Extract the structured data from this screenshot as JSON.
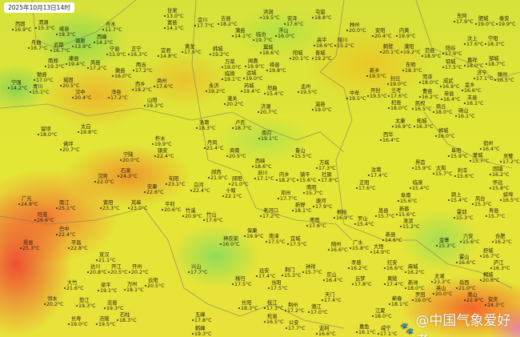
{
  "timestamp": "2025年10月13日14时",
  "watermark": "@中国气象爱好者",
  "watermark_icon": "weibo-paw-icon",
  "colors": {
    "cool": "#8ed85a",
    "mild": "#e2e436",
    "warm": "#f0a828",
    "hot": "#f0583a"
  },
  "stations": [
    {
      "name": "西固",
      "temp": "16.9°C"
    },
    {
      "name": "渭源",
      "temp": "15.3°C"
    },
    {
      "name": "岷县",
      "temp": "18.3°C"
    },
    {
      "name": "镇原",
      "temp": "13.9°C"
    },
    {
      "name": "西峰",
      "temp": "14.2°C"
    },
    {
      "name": "合水",
      "temp": "11.7°C"
    },
    {
      "name": "宁县",
      "temp": "11.0°C"
    },
    {
      "name": "正宁",
      "temp": "16.3°C"
    },
    {
      "name": "甘泉",
      "temp": "13.0°C"
    },
    {
      "name": "富县",
      "temp": "14.1°C"
    },
    {
      "name": "宜君",
      "temp": "14.8°C"
    },
    {
      "name": "舟曲",
      "temp": "16.7°C"
    },
    {
      "name": "武都",
      "temp": "16.7°C"
    },
    {
      "name": "康县",
      "temp": "19.4°C"
    },
    {
      "name": "凤县",
      "temp": "17.2°C"
    },
    {
      "name": "徽县",
      "temp": "16.0°C"
    },
    {
      "name": "两当",
      "temp": "17.2°C"
    },
    {
      "name": "勉县",
      "temp": "17.0°C"
    },
    {
      "name": "宁强",
      "temp": "14.2°C"
    },
    {
      "name": "青川",
      "temp": "15.1°C"
    },
    {
      "name": "城固",
      "temp": "20.5°C"
    },
    {
      "name": "南郑",
      "temp": "19.3°C"
    },
    {
      "name": "汉中",
      "temp": "20.4°C"
    },
    {
      "name": "洋县",
      "temp": "17.2°C"
    },
    {
      "name": "西乡",
      "temp": "18.2°C"
    },
    {
      "name": "商州",
      "temp": "17.6°C"
    },
    {
      "name": "山阳",
      "temp": "19.3°C"
    },
    {
      "name": "宜川",
      "temp": "17.7°C"
    },
    {
      "name": "吉县",
      "temp": "18.2°C"
    },
    {
      "name": "蒲县",
      "temp": "14.1°C"
    },
    {
      "name": "黄龙",
      "temp": "17.6°C"
    },
    {
      "name": "韩城",
      "temp": "19.2°C"
    },
    {
      "name": "万荣",
      "temp": "19.0°C"
    },
    {
      "name": "临猗",
      "temp": "19.1°C"
    },
    {
      "name": "运城",
      "temp": "19.0°C"
    },
    {
      "name": "永济",
      "temp": "19.2°C"
    },
    {
      "name": "潼关",
      "temp": "20.2°C"
    },
    {
      "name": "芮城",
      "temp": "19.4°C"
    },
    {
      "name": "垣曲",
      "temp": "15.4°C"
    },
    {
      "name": "济源",
      "temp": "20.7°C"
    },
    {
      "name": "洪洞",
      "temp": "19.5°C"
    },
    {
      "name": "安泽",
      "temp": "17.6°C"
    },
    {
      "name": "临汾",
      "temp": "19.7°C"
    },
    {
      "name": "浮山",
      "temp": "16.0°C"
    },
    {
      "name": "翼城",
      "temp": "18.6°C"
    },
    {
      "name": "闻喜",
      "temp": "19.9°C"
    },
    {
      "name": "绛县",
      "temp": "19.8°C"
    },
    {
      "name": "阳城",
      "temp": "20.1°C"
    },
    {
      "name": "高平",
      "temp": "18.6°C"
    },
    {
      "name": "陵川",
      "temp": "15.2°C"
    },
    {
      "name": "晋城",
      "temp": "19.2°C"
    },
    {
      "name": "屯留",
      "temp": "18.8°C"
    },
    {
      "name": "孟州",
      "temp": "19.5°C"
    },
    {
      "name": "温县",
      "temp": "19.0°C"
    },
    {
      "name": "林州",
      "temp": "20.0°C"
    },
    {
      "name": "安阳",
      "temp": "20.4°C"
    },
    {
      "name": "鹤壁",
      "temp": "20.1°C"
    },
    {
      "name": "新乡",
      "temp": "19.5°C"
    },
    {
      "name": "封丘",
      "temp": "19.0°C"
    },
    {
      "name": "内黄",
      "temp": "19.9°C"
    },
    {
      "name": "濮阳",
      "temp": "19.2°C"
    },
    {
      "name": "范县",
      "temp": "18.9°C"
    },
    {
      "name": "阳谷",
      "temp": "17.9°C"
    },
    {
      "name": "东阿",
      "temp": "17.9°C"
    },
    {
      "name": "肥城",
      "temp": "19.0°C"
    },
    {
      "name": "泰安",
      "temp": "19.9°C"
    },
    {
      "name": "汶上",
      "temp": "17.6°C"
    },
    {
      "name": "宁阳",
      "temp": "18.3°C"
    },
    {
      "name": "郓城",
      "temp": "17.5°C"
    },
    {
      "name": "嘉祥",
      "temp": "18.0°C"
    },
    {
      "name": "济宁",
      "temp": "17.1°C"
    },
    {
      "name": "邹城",
      "temp": "18.7°C"
    },
    {
      "name": "东明",
      "temp": "18.3°C"
    },
    {
      "name": "菏泽",
      "temp": "18.0°C"
    },
    {
      "name": "成武",
      "temp": "16.9°C"
    },
    {
      "name": "金乡",
      "temp": "16.6°C"
    },
    {
      "name": "滕州",
      "temp": "16.5°C"
    },
    {
      "name": "单县",
      "temp": "16.4°C"
    },
    {
      "name": "曹县",
      "temp": "16.2°C"
    },
    {
      "name": "兰考",
      "temp": "17.6°C"
    },
    {
      "name": "开封",
      "temp": "19.5°C"
    },
    {
      "name": "中牟",
      "temp": "19.5°C"
    },
    {
      "name": "杞县",
      "temp": "18.0°C"
    },
    {
      "name": "民权",
      "temp": "16.5°C"
    },
    {
      "name": "商丘",
      "temp": "18.0°C"
    },
    {
      "name": "丰县",
      "temp": "16.1°C"
    },
    {
      "name": "砀山",
      "temp": "16.1°C"
    },
    {
      "name": "太白",
      "temp": "19.8°C"
    },
    {
      "name": "留坝",
      "temp": "18.0°C"
    },
    {
      "name": "佛坪",
      "temp": "20.7°C"
    },
    {
      "name": "宁陕",
      "temp": "20.0°C"
    },
    {
      "name": "柞水",
      "temp": "19.9°C"
    },
    {
      "name": "镇安",
      "temp": "22.4°C"
    },
    {
      "name": "石泉",
      "temp": "24.3°C"
    },
    {
      "name": "汉阴",
      "temp": "22.0°C"
    },
    {
      "name": "紫阳",
      "temp": "23.3°C"
    },
    {
      "name": "岚皋",
      "temp": "23.0°C"
    },
    {
      "name": "平利",
      "temp": "20.6°C"
    },
    {
      "name": "安康",
      "temp": "22.6°C"
    },
    {
      "name": "旬阳",
      "temp": "23.1°C"
    },
    {
      "name": "广元",
      "temp": "24.8°C"
    },
    {
      "name": "旺苍",
      "temp": "26.6°C"
    },
    {
      "name": "南江",
      "temp": "25.1°C"
    },
    {
      "name": "洛南",
      "temp": "18.3°C"
    },
    {
      "name": "卢氏",
      "temp": "18.7°C"
    },
    {
      "name": "丹凤",
      "temp": "21.4°C"
    },
    {
      "name": "商南",
      "temp": "20.5°C"
    },
    {
      "name": "西峡",
      "temp": "18.6°C"
    },
    {
      "name": "淅川",
      "temp": "17.1°C"
    },
    {
      "name": "内乡",
      "temp": "18.2°C"
    },
    {
      "name": "镇平",
      "temp": "15.6°C"
    },
    {
      "name": "南阳",
      "temp": "15.7°C"
    },
    {
      "name": "南召",
      "temp": "19.1°C"
    },
    {
      "name": "方城",
      "temp": "17.3°C"
    },
    {
      "name": "社旗",
      "temp": "17.8°C"
    },
    {
      "name": "邓州",
      "temp": "17.7°C"
    },
    {
      "name": "新野",
      "temp": "18.1°C"
    },
    {
      "name": "唐河",
      "temp": "17.9°C"
    },
    {
      "name": "老河口",
      "temp": "17.2°C"
    },
    {
      "name": "竹溪",
      "temp": "20.9°C"
    },
    {
      "name": "竹山",
      "temp": "17.6°C"
    },
    {
      "name": "郧西",
      "temp": "21.9°C"
    },
    {
      "name": "白河",
      "temp": "22.4°C"
    },
    {
      "name": "郧阳",
      "temp": "21.0°C"
    },
    {
      "name": "十堰",
      "temp": "22.1°C"
    },
    {
      "name": "桐柏",
      "temp": "16.9°C"
    },
    {
      "name": "枣阳",
      "temp": "17.6°C"
    },
    {
      "name": "鲁山",
      "temp": "15.5°C"
    },
    {
      "name": "太康",
      "temp": "16.9°C"
    },
    {
      "name": "柘城",
      "temp": "16.3°C"
    },
    {
      "name": "郸城",
      "temp": "16.0°C"
    },
    {
      "name": "西华",
      "temp": "16.4°C"
    },
    {
      "name": "界首",
      "temp": "15.9°C"
    },
    {
      "name": "太和",
      "temp": "15.7°C"
    },
    {
      "name": "阜阳",
      "temp": "15.9°C"
    },
    {
      "name": "利辛",
      "temp": "15.6°C"
    },
    {
      "name": "蒙城",
      "temp": "15.7°C"
    },
    {
      "name": "宿州",
      "temp": "16.4°C"
    },
    {
      "name": "灵璧",
      "temp": "17.2°C"
    },
    {
      "name": "固镇",
      "temp": "16.2°C"
    },
    {
      "name": "怀远",
      "temp": "15.8°C"
    },
    {
      "name": "蚌埠",
      "temp": "16.5°C"
    },
    {
      "name": "临泉",
      "temp": "15.4°C"
    },
    {
      "name": "阜南",
      "temp": "15.6°C"
    },
    {
      "name": "颍上",
      "temp": "15.4°C"
    },
    {
      "name": "凤台",
      "temp": "15.3°C"
    },
    {
      "name": "寿县",
      "temp": "15.7°C"
    },
    {
      "name": "霍邱",
      "temp": "15.3°C"
    },
    {
      "name": "新蔡",
      "temp": "15.6°C"
    },
    {
      "name": "正阳",
      "temp": "17.6°C"
    },
    {
      "name": "汝南",
      "temp": "17.4°C"
    },
    {
      "name": "息县",
      "temp": "15.7°C"
    },
    {
      "name": "淮滨",
      "temp": "15.2°C"
    },
    {
      "name": "罗山",
      "temp": "15.4°C"
    },
    {
      "name": "巴中",
      "temp": "22.4°C"
    },
    {
      "name": "平昌",
      "temp": "22.8°C"
    },
    {
      "name": "渠县",
      "temp": "25.3°C"
    },
    {
      "name": "宣汉",
      "temp": "21.1°C"
    },
    {
      "name": "达川",
      "temp": "20.8°C"
    },
    {
      "name": "开江",
      "temp": "20.5°C"
    },
    {
      "name": "梁平",
      "temp": "19.1°C"
    },
    {
      "name": "万州",
      "temp": "18.1°C"
    },
    {
      "name": "开州",
      "temp": "20.2°C"
    },
    {
      "name": "云阳",
      "temp": "20.5°C"
    },
    {
      "name": "大竹",
      "temp": "21.6°C"
    },
    {
      "name": "邻水",
      "temp": "20.2°C"
    },
    {
      "name": "垫江",
      "temp": "19.3°C"
    },
    {
      "name": "忠县",
      "temp": "19.3°C"
    },
    {
      "name": "长寿",
      "temp": "19.0°C"
    },
    {
      "name": "涪陵",
      "temp": "19.5°C"
    },
    {
      "name": "石柱",
      "temp": "18.3°C"
    },
    {
      "name": "神农架",
      "temp": "16.0°C"
    },
    {
      "name": "保康",
      "temp": "19.9°C"
    },
    {
      "name": "南漳",
      "temp": "17.5°C"
    },
    {
      "name": "宜城",
      "temp": "17.5°C"
    },
    {
      "name": "兴山",
      "temp": "17.7°C"
    },
    {
      "name": "秭归",
      "temp": "17.5°C"
    },
    {
      "name": "远安",
      "temp": "17.4°C"
    },
    {
      "name": "当阳",
      "temp": "17.5°C"
    },
    {
      "name": "荆门",
      "temp": "15.3°C"
    },
    {
      "name": "钟祥",
      "temp": "15.7°C"
    },
    {
      "name": "京山",
      "temp": "16.4°C"
    },
    {
      "name": "随州",
      "temp": "16.6°C"
    },
    {
      "name": "天门",
      "temp": "17.4°C"
    },
    {
      "name": "潜江",
      "temp": "17.0°C"
    },
    {
      "name": "枝江",
      "temp": "17.3°C"
    },
    {
      "name": "荆州",
      "temp": "17.2°C"
    },
    {
      "name": "松滋",
      "temp": "16.5°C"
    },
    {
      "name": "公安",
      "temp": "17.7°C"
    },
    {
      "name": "长阳",
      "temp": "18.3°C"
    },
    {
      "name": "五峰",
      "temp": "17.8°C"
    },
    {
      "name": "鹤峰",
      "temp": "19.3°C"
    },
    {
      "name": "监利",
      "temp": "16.6°C"
    },
    {
      "name": "广水",
      "temp": "15.8°C"
    },
    {
      "name": "大悟",
      "temp": "14.9°C"
    },
    {
      "name": "新县",
      "temp": "14.6°C"
    },
    {
      "name": "金寨",
      "temp": "15.3°C"
    },
    {
      "name": "六安",
      "temp": "15.6°C"
    },
    {
      "name": "合肥",
      "temp": "16.2°C"
    },
    {
      "name": "孝感",
      "temp": "16.2°C"
    },
    {
      "name": "红安",
      "temp": "16.6°C"
    },
    {
      "name": "麻城",
      "temp": "16.2°C"
    },
    {
      "name": "霍山",
      "temp": "16.6°C"
    },
    {
      "name": "舒城",
      "temp": "16.7°C"
    },
    {
      "name": "庐江",
      "temp": "16.3°C"
    },
    {
      "name": "桐城",
      "temp": "20.6°C"
    },
    {
      "name": "云梦",
      "temp": "17.8°C"
    },
    {
      "name": "黄陂",
      "temp": "17.4°C"
    },
    {
      "name": "新洲",
      "temp": "18.0°C"
    },
    {
      "name": "罗田",
      "temp": "19.0°C"
    },
    {
      "name": "英山",
      "temp": "20.0°C"
    },
    {
      "name": "岳西",
      "temp": "21.0°C"
    },
    {
      "name": "潜山",
      "temp": "22.9°C"
    },
    {
      "name": "安庆",
      "temp": "24.3°C"
    },
    {
      "name": "太湖",
      "temp": "23.3°C"
    },
    {
      "name": "江夏",
      "temp": "18.0°C"
    },
    {
      "name": "蕲春",
      "temp": "18.1°C"
    },
    {
      "name": "嘉鱼",
      "temp": "16.1°C"
    },
    {
      "name": "咸宁",
      "temp": "17.1°C"
    }
  ]
}
